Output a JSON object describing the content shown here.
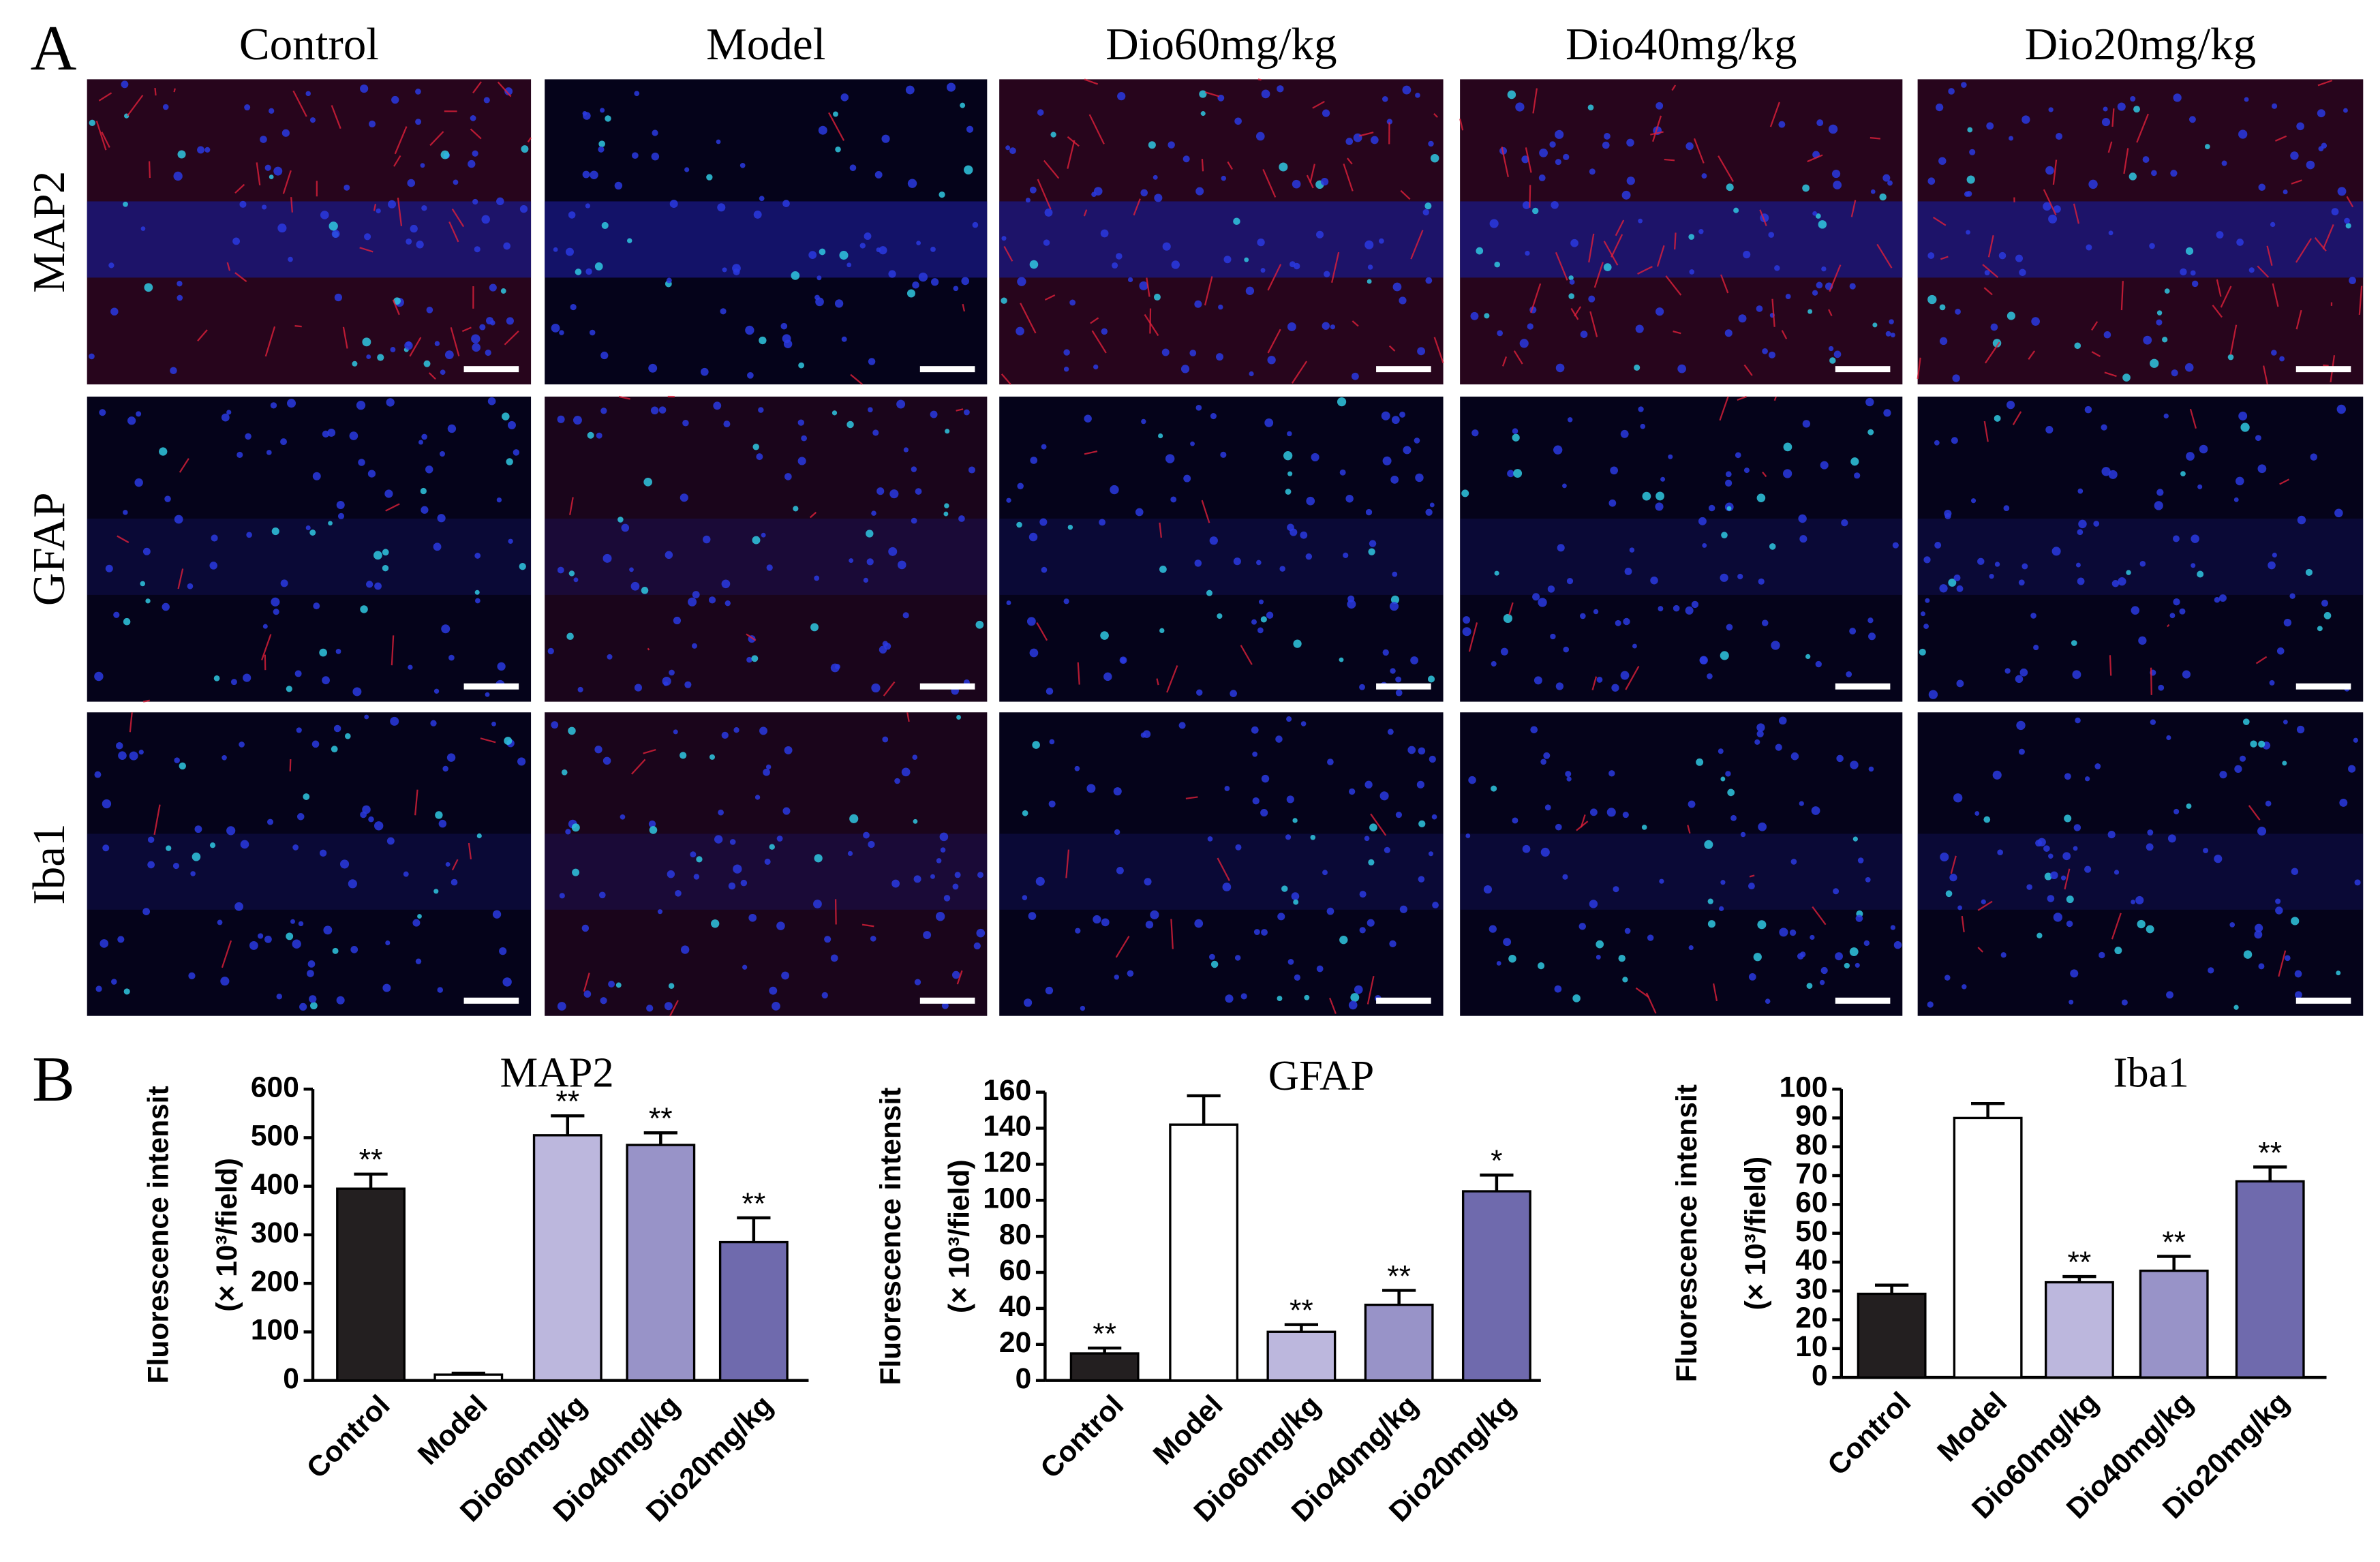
{
  "figure": {
    "label_a": "A",
    "label_b": "B",
    "columns": [
      "Control",
      "Model",
      "Dio60mg/kg",
      "Dio40mg/kg",
      "Dio20mg/kg"
    ],
    "rows": [
      "MAP2",
      "GFAP",
      "Iba1"
    ]
  },
  "chart_data": [
    {
      "type": "bar",
      "title": "MAP2",
      "ylabel": [
        "Fluorescence intensit",
        "(× 10³/field)"
      ],
      "categories": [
        "Control",
        "Model",
        "Dio60mg/kg",
        "Dio40mg/kg",
        "Dio20mg/kg"
      ],
      "values": [
        395,
        12,
        505,
        485,
        285
      ],
      "errors": [
        30,
        3,
        40,
        25,
        50
      ],
      "colors": [
        "#231f20",
        "#ffffff",
        "#bcb7dd",
        "#9893c8",
        "#6f6aad"
      ],
      "annotations": [
        "**",
        null,
        "**",
        "**",
        "**"
      ],
      "ylim": [
        0,
        600
      ],
      "yticks": [
        0,
        100,
        200,
        300,
        400,
        500,
        600
      ]
    },
    {
      "type": "bar",
      "title": "GFAP",
      "ylabel": [
        "Fluorescence intensit",
        "(× 10³/field)"
      ],
      "categories": [
        "Control",
        "Model",
        "Dio60mg/kg",
        "Dio40mg/kg",
        "Dio20mg/kg"
      ],
      "values": [
        15,
        142,
        27,
        42,
        105
      ],
      "errors": [
        3,
        16,
        4,
        8,
        9
      ],
      "colors": [
        "#231f20",
        "#ffffff",
        "#bcb7dd",
        "#9893c8",
        "#6f6aad"
      ],
      "annotations": [
        "**",
        null,
        "**",
        "**",
        "*"
      ],
      "ylim": [
        0,
        160
      ],
      "yticks": [
        0,
        20,
        40,
        60,
        80,
        100,
        120,
        140,
        160
      ]
    },
    {
      "type": "bar",
      "title": "Iba1",
      "ylabel": [
        "Fluorescence intensit",
        "(× 10³/field)"
      ],
      "categories": [
        "Control",
        "Model",
        "Dio60mg/kg",
        "Dio40mg/kg",
        "Dio20mg/kg"
      ],
      "values": [
        29,
        90,
        33,
        37,
        68
      ],
      "errors": [
        3,
        5,
        2,
        5,
        5
      ],
      "colors": [
        "#231f20",
        "#ffffff",
        "#bcb7dd",
        "#9893c8",
        "#6f6aad"
      ],
      "annotations": [
        null,
        null,
        "**",
        "**",
        "**"
      ],
      "ylim": [
        0,
        100
      ],
      "yticks": [
        0,
        10,
        20,
        30,
        40,
        50,
        60,
        70,
        80,
        90,
        100
      ]
    }
  ]
}
